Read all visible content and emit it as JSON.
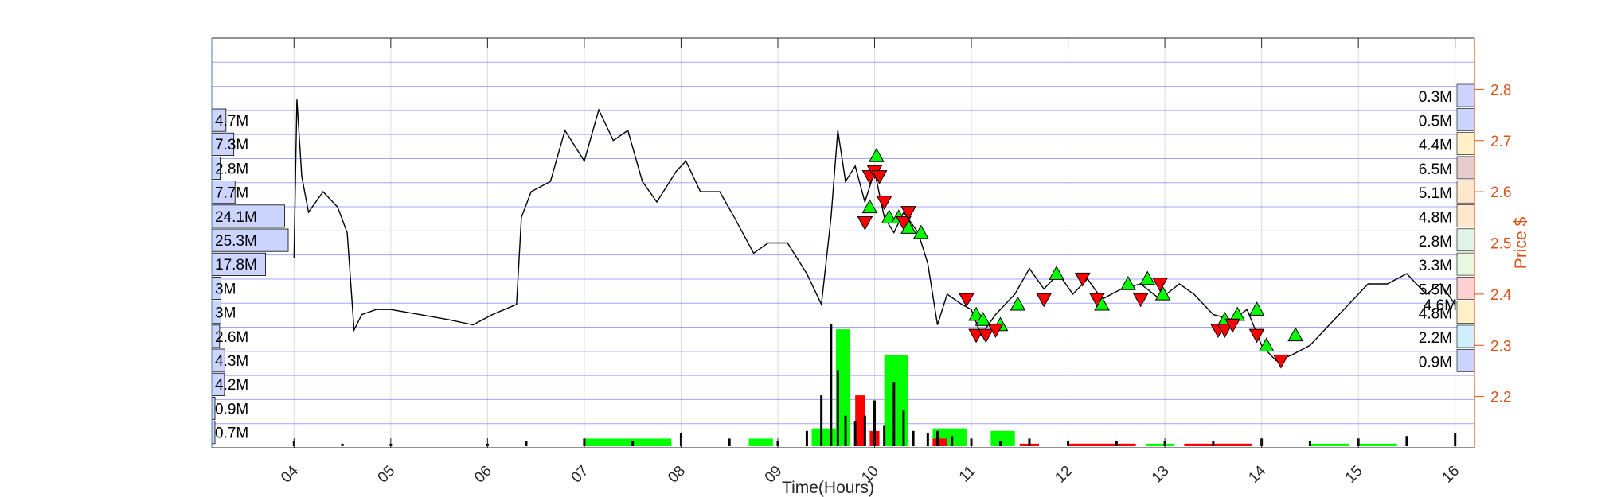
{
  "chart_data": {
    "type": "line",
    "title": "",
    "xlabel": "Time(Hours)",
    "ylabel_right": "Price $",
    "x_ticks": [
      "04",
      "05",
      "06",
      "07",
      "08",
      "09",
      "10",
      "11",
      "12",
      "13",
      "14",
      "15",
      "16"
    ],
    "x_range_hours": [
      3.15,
      16.2
    ],
    "y_ticks": [
      "2.2",
      "2.3",
      "2.4",
      "2.5",
      "2.6",
      "2.7",
      "2.8"
    ],
    "y_range": [
      2.1,
      2.9
    ],
    "grid": true,
    "colors": {
      "price": "#000000",
      "axis_right": "#d95319",
      "grid_h": "#5a5aff",
      "grid_v": "#dcdcdc",
      "buy": "#00ff00",
      "sell": "#ff0000",
      "profile_left": "#ccd5ff"
    },
    "price_series": {
      "name": "",
      "x": [
        4.0,
        4.03,
        4.08,
        4.15,
        4.3,
        4.45,
        4.55,
        4.62,
        4.7,
        4.85,
        5.0,
        5.3,
        5.6,
        5.85,
        6.05,
        6.3,
        6.35,
        6.45,
        6.65,
        6.8,
        7.0,
        7.15,
        7.3,
        7.45,
        7.6,
        7.75,
        7.95,
        8.05,
        8.2,
        8.4,
        8.55,
        8.75,
        8.9,
        9.1,
        9.3,
        9.45,
        9.55,
        9.62,
        9.7,
        9.8,
        9.9,
        10.0,
        10.1,
        10.2,
        10.3,
        10.45,
        10.55,
        10.65,
        10.75,
        10.9,
        11.0,
        11.1,
        11.25,
        11.45,
        11.6,
        11.75,
        11.9,
        12.05,
        12.2,
        12.35,
        12.55,
        12.75,
        12.95,
        13.15,
        13.3,
        13.5,
        13.7,
        13.85,
        14.0,
        14.15,
        14.3,
        14.5,
        14.7,
        14.9,
        15.1,
        15.3,
        15.5,
        15.7,
        15.85,
        16.0
      ],
      "y": [
        2.47,
        2.78,
        2.63,
        2.56,
        2.6,
        2.57,
        2.52,
        2.33,
        2.36,
        2.37,
        2.37,
        2.36,
        2.35,
        2.34,
        2.36,
        2.38,
        2.55,
        2.6,
        2.62,
        2.72,
        2.66,
        2.76,
        2.7,
        2.72,
        2.62,
        2.58,
        2.64,
        2.66,
        2.6,
        2.6,
        2.55,
        2.48,
        2.5,
        2.5,
        2.44,
        2.38,
        2.55,
        2.72,
        2.62,
        2.65,
        2.58,
        2.64,
        2.55,
        2.52,
        2.56,
        2.52,
        2.46,
        2.34,
        2.4,
        2.38,
        2.37,
        2.32,
        2.36,
        2.4,
        2.45,
        2.41,
        2.44,
        2.4,
        2.43,
        2.39,
        2.41,
        2.42,
        2.39,
        2.42,
        2.4,
        2.36,
        2.35,
        2.37,
        2.3,
        2.27,
        2.28,
        2.3,
        2.34,
        2.38,
        2.42,
        2.42,
        2.44,
        2.4,
        2.42,
        2.38
      ]
    },
    "volume_series": {
      "name": "",
      "x": [
        4.0,
        4.5,
        5.0,
        6.0,
        6.4,
        7.0,
        7.5,
        8.0,
        8.5,
        9.0,
        9.3,
        9.45,
        9.55,
        9.62,
        9.7,
        9.8,
        9.9,
        10.0,
        10.1,
        10.2,
        10.3,
        10.4,
        10.55,
        10.65,
        10.8,
        11.0,
        11.3,
        11.6,
        12.0,
        12.5,
        13.0,
        13.5,
        14.0,
        14.5,
        15.0,
        15.5,
        16.0
      ],
      "h": [
        0.02,
        0.01,
        0.01,
        0.01,
        0.02,
        0.03,
        0.02,
        0.05,
        0.03,
        0.02,
        0.06,
        0.2,
        0.48,
        0.3,
        0.12,
        0.1,
        0.12,
        0.18,
        0.08,
        0.25,
        0.14,
        0.06,
        0.05,
        0.06,
        0.04,
        0.03,
        0.02,
        0.03,
        0.02,
        0.02,
        0.02,
        0.02,
        0.03,
        0.02,
        0.03,
        0.04,
        0.05
      ]
    },
    "volume_bars_green": [
      {
        "x0": 7.0,
        "x1": 7.9,
        "h": 0.03
      },
      {
        "x0": 8.7,
        "x1": 8.95,
        "h": 0.03
      },
      {
        "x0": 9.35,
        "x1": 9.6,
        "h": 0.07
      },
      {
        "x0": 9.6,
        "x1": 9.75,
        "h": 0.46
      },
      {
        "x0": 10.1,
        "x1": 10.35,
        "h": 0.36
      },
      {
        "x0": 10.6,
        "x1": 10.95,
        "h": 0.07
      },
      {
        "x0": 11.2,
        "x1": 11.45,
        "h": 0.06
      },
      {
        "x0": 12.8,
        "x1": 13.1,
        "h": 0.01
      },
      {
        "x0": 14.5,
        "x1": 14.9,
        "h": 0.01
      },
      {
        "x0": 15.0,
        "x1": 15.4,
        "h": 0.01
      }
    ],
    "volume_bars_red": [
      {
        "x0": 9.8,
        "x1": 9.9,
        "h": 0.2
      },
      {
        "x0": 9.95,
        "x1": 10.05,
        "h": 0.06
      },
      {
        "x0": 10.6,
        "x1": 10.75,
        "h": 0.03
      },
      {
        "x0": 11.5,
        "x1": 11.7,
        "h": 0.01
      },
      {
        "x0": 12.0,
        "x1": 12.7,
        "h": 0.01
      },
      {
        "x0": 13.2,
        "x1": 13.9,
        "h": 0.01
      }
    ],
    "buy_markers": {
      "x": [
        10.02,
        9.95,
        10.15,
        10.25,
        10.35,
        10.48,
        11.05,
        11.12,
        11.3,
        11.48,
        11.88,
        12.35,
        12.62,
        12.82,
        12.98,
        13.62,
        13.75,
        13.95,
        14.05,
        14.35
      ],
      "y": [
        2.67,
        2.57,
        2.55,
        2.55,
        2.53,
        2.52,
        2.36,
        2.35,
        2.34,
        2.38,
        2.44,
        2.38,
        2.42,
        2.43,
        2.4,
        2.35,
        2.36,
        2.37,
        2.3,
        2.32
      ]
    },
    "sell_markers": {
      "x": [
        9.95,
        10.0,
        10.05,
        10.1,
        10.3,
        10.35,
        9.9,
        10.95,
        11.05,
        11.15,
        11.25,
        11.75,
        12.15,
        12.3,
        12.75,
        12.95,
        13.55,
        13.62,
        13.7,
        13.95,
        14.2
      ],
      "y": [
        2.63,
        2.64,
        2.63,
        2.58,
        2.54,
        2.56,
        2.54,
        2.39,
        2.32,
        2.32,
        2.33,
        2.39,
        2.43,
        2.39,
        2.39,
        2.42,
        2.33,
        2.33,
        2.34,
        2.32,
        2.27
      ]
    },
    "left_profile": {
      "labels": [
        "4.7M",
        "7.3M",
        "2.8M",
        "7.7M",
        "24.1M",
        "25.3M",
        "17.8M",
        "3M",
        "3M",
        "2.6M",
        "4.3M",
        "4.2M",
        "0.9M",
        "0.7M"
      ],
      "values": [
        4.7,
        7.3,
        2.8,
        7.7,
        24.1,
        25.3,
        17.8,
        3,
        3,
        2.6,
        4.3,
        4.2,
        0.9,
        0.7
      ],
      "max_value": 25.3
    },
    "right_profile": {
      "labels": [
        "0.3M",
        "0.5M",
        "4.4M",
        "6.5M",
        "5.1M",
        "4.8M",
        "2.8M",
        "3.3M",
        "5.5M",
        "4.8M",
        "2.2M",
        "0.9M"
      ],
      "values": [
        0.3,
        0.5,
        4.4,
        6.5,
        5.1,
        4.8,
        2.8,
        3.3,
        5.5,
        4.8,
        2.2,
        0.9
      ],
      "colors": [
        "#ccd5ff",
        "#ccd5ff",
        "#fff0c8",
        "#e8cccc",
        "#ffe8cc",
        "#ffe8cc",
        "#dff5e8",
        "#e8f8e0",
        "#ffd0d0",
        "#fff0c8",
        "#d0f0ff",
        "#ccd5ff"
      ],
      "overlap_label": "4.6M"
    }
  }
}
